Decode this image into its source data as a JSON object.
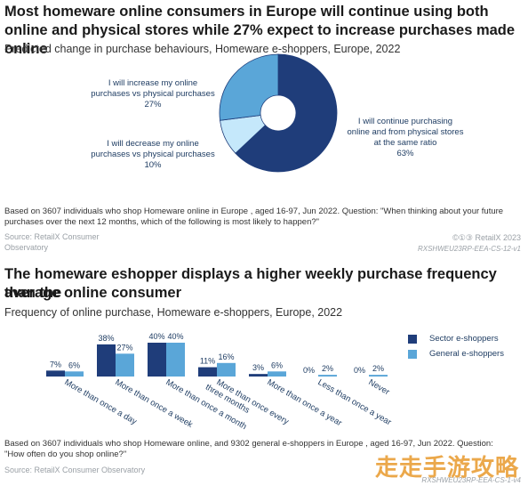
{
  "chart1": {
    "title": "Most homeware online consumers in Europe will continue using both online and physical stores while 27% expect  to increase purchases made online",
    "subtitle": "Predicted change in purchase behaviours, Homeware e-shoppers, Europe, 2022",
    "note_line1": "Based on 3607 individuals who shop Homeware online in Europe , aged 16-97, Jun 2022. Question: \"When thinking about your future",
    "note_line2": "purchases over the next 12 months, which of the following is most likely to happen?\"",
    "source": "Source: RetailX Consumer",
    "source2": "Observatory",
    "brand": "RetailX 2023",
    "brand_icons": "©①③",
    "code": "RXSHWEU23RP-EEA-CS-12-v1"
  },
  "chart2": {
    "title_line1": "The homeware eshopper displays a higher weekly purchase frequency than the",
    "title_line2": "average online consumer",
    "subtitle": "Frequency of online purchase, Homeware e-shoppers, Europe, 2022",
    "note_line1": "Based on 3607 individuals who shop Homeware online, and 9302 general e-shoppers in Europe , aged 16-97, Jun 2022. Question:",
    "note_line2": "\"How often do you shop online?\"",
    "source": "Source: RetailX Consumer Observatory",
    "code": "RXSHWEU23RP-EEA-CS-1-v4"
  },
  "watermark": "走走手游攻略",
  "colors": {
    "dark": "#1f3d7a",
    "mid": "#5aa6d8",
    "light": "#c5e8fb"
  },
  "chart_data": [
    {
      "type": "pie",
      "donut": true,
      "slices": [
        {
          "line1": "I will continue purchasing",
          "line2": "online and from physical stores",
          "line3": "at the same ratio",
          "pct": "63%",
          "value": 63,
          "color": "#1f3d7a"
        },
        {
          "line1": "I will decrease my online",
          "line2": "purchases vs physical purchases",
          "pct": "10%",
          "value": 10,
          "color": "#c5e8fb"
        },
        {
          "line1": "I will increase my online",
          "line2": "purchases vs physical purchases",
          "pct": "27%",
          "value": 27,
          "color": "#5aa6d8"
        }
      ]
    },
    {
      "type": "bar",
      "categories": [
        "More than once a day",
        "More than once a week",
        "More than once a month",
        "More than once every three months",
        "More than once a year",
        "Less than once a year",
        "Never"
      ],
      "series": [
        {
          "name": "Sector e-shoppers",
          "color": "#1f3d7a",
          "values": [
            7,
            38,
            40,
            11,
            3,
            0,
            0
          ],
          "labels": [
            "7%",
            "38%",
            "40%",
            "11%",
            "3%",
            "0%",
            "0%"
          ]
        },
        {
          "name": "General e-shoppers",
          "color": "#5aa6d8",
          "values": [
            6,
            27,
            40,
            16,
            6,
            2,
            2
          ],
          "labels": [
            "6%",
            "27%",
            "40%",
            "16%",
            "6%",
            "2%",
            "2%"
          ]
        }
      ],
      "ylim": [
        0,
        40
      ]
    }
  ]
}
